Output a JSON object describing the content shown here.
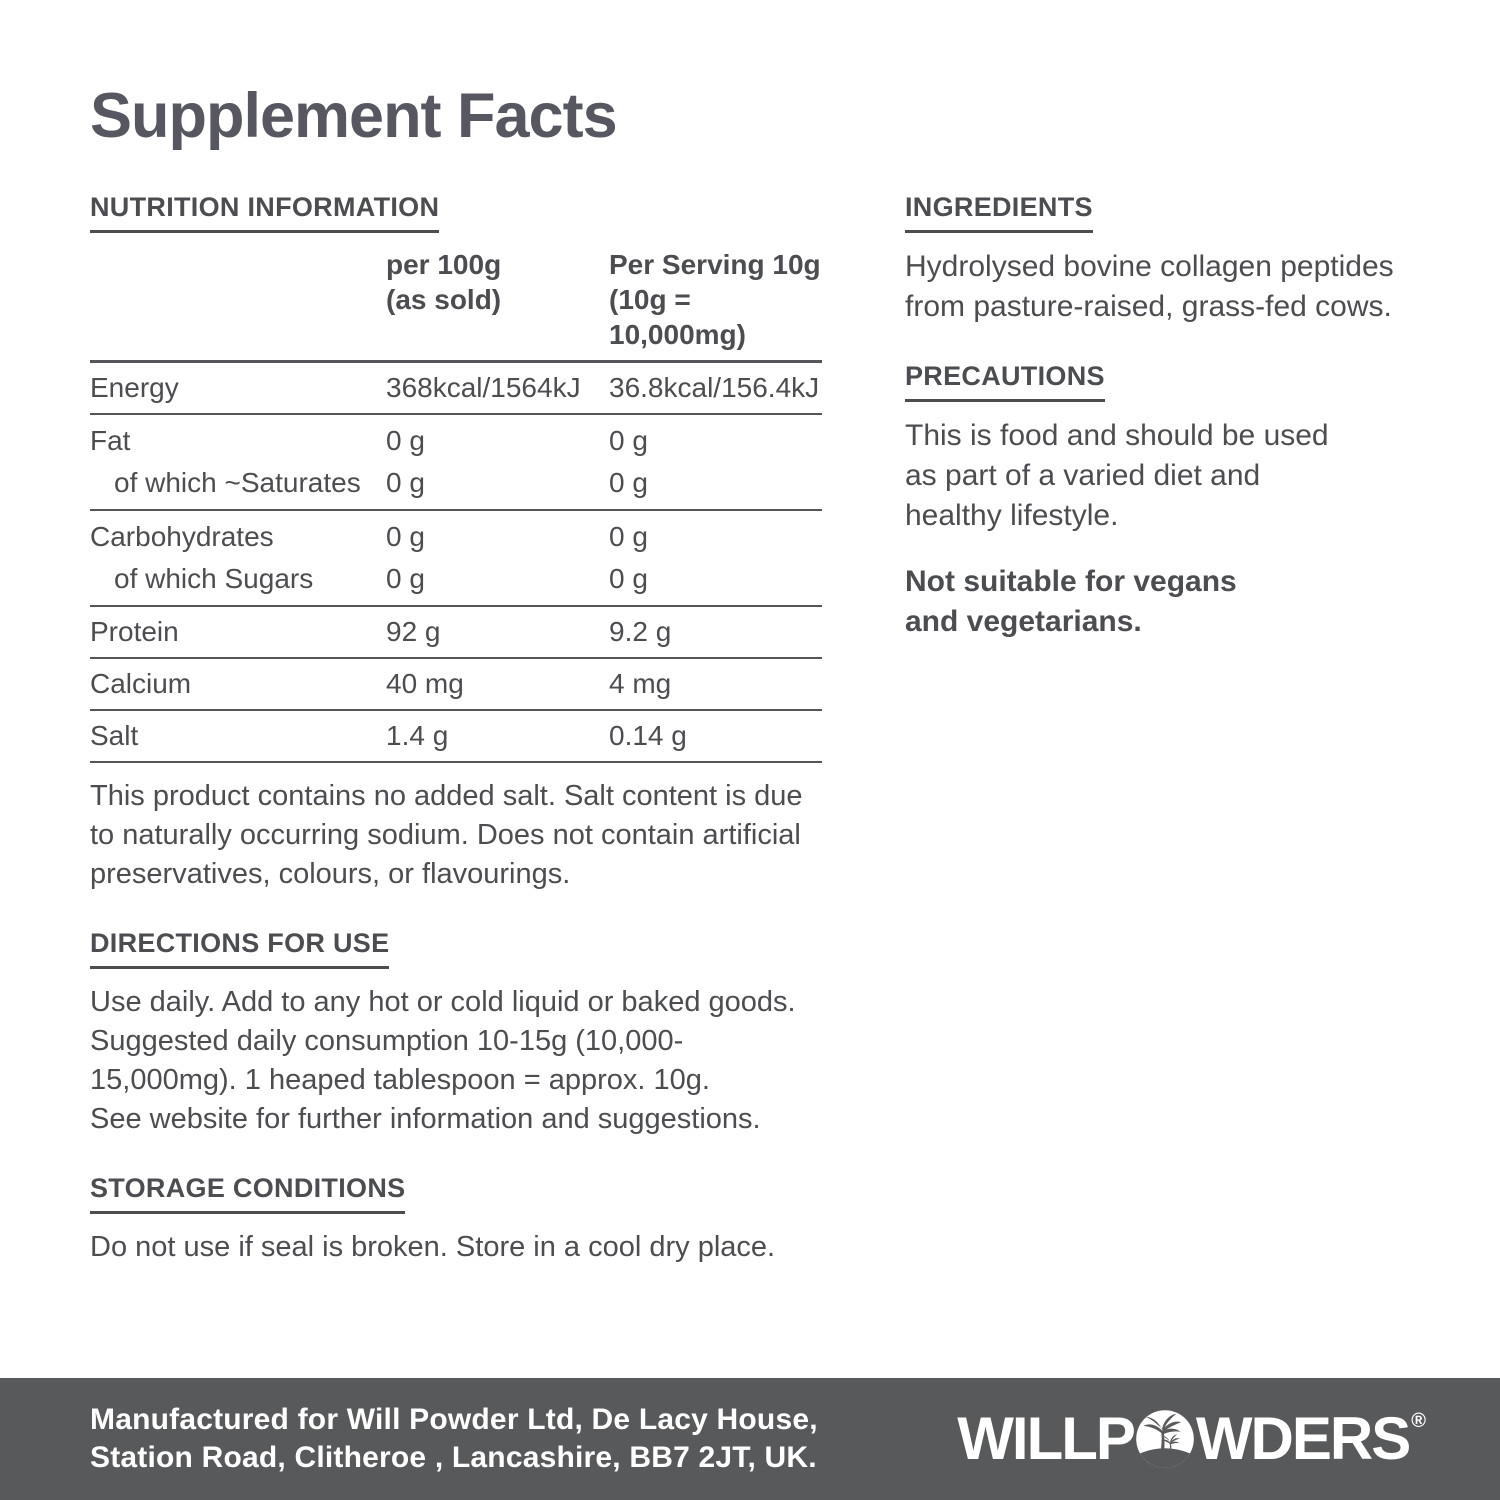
{
  "page": {
    "title": "Supplement Facts"
  },
  "nutrition": {
    "heading": "NUTRITION INFORMATION",
    "col_per100": [
      "per 100g",
      "(as sold)"
    ],
    "col_serving": [
      "Per Serving 10g",
      "(10g = 10,000mg)"
    ],
    "groups": [
      {
        "rows": [
          {
            "label": "Energy",
            "per100": "368kcal/1564kJ",
            "serving": "36.8kcal/156.4kJ"
          }
        ]
      },
      {
        "rows": [
          {
            "label": "Fat",
            "per100": "0 g",
            "serving": "0 g"
          },
          {
            "label": "of which ~Saturates",
            "per100": "0 g",
            "serving": "0 g"
          }
        ]
      },
      {
        "rows": [
          {
            "label": "Carbohydrates",
            "per100": "0 g",
            "serving": "0 g"
          },
          {
            "label": "of which Sugars",
            "per100": "0 g",
            "serving": "0 g"
          }
        ]
      },
      {
        "rows": [
          {
            "label": "Protein",
            "per100": "92 g",
            "serving": "9.2 g"
          }
        ]
      },
      {
        "rows": [
          {
            "label": "Calcium",
            "per100": "40 mg",
            "serving": "4 mg"
          }
        ]
      },
      {
        "rows": [
          {
            "label": "Salt",
            "per100": "1.4 g",
            "serving": "0.14 g"
          }
        ]
      }
    ],
    "note_lines": [
      "This product contains no added salt. Salt content is due",
      "to naturally occurring sodium. Does not contain artificial",
      "preservatives, colours, or flavourings."
    ]
  },
  "directions": {
    "heading": "DIRECTIONS FOR USE",
    "lines": [
      "Use daily. Add to any hot or cold liquid or baked goods.",
      "Suggested daily consumption 10-15g (10,000-",
      "15,000mg).  1 heaped tablespoon = approx. 10g.",
      "See website for further information and suggestions."
    ]
  },
  "storage": {
    "heading": "STORAGE CONDITIONS",
    "lines": [
      "Do not use if seal is broken. Store in a cool dry place."
    ]
  },
  "ingredients": {
    "heading": "INGREDIENTS",
    "lines": [
      "Hydrolysed bovine collagen peptides",
      "from pasture-raised, grass-fed cows."
    ]
  },
  "precautions": {
    "heading": "PRECAUTIONS",
    "lines": [
      "This is food and should be used",
      "as part of a varied diet and",
      "healthy lifestyle."
    ],
    "note_lines": [
      "Not suitable for vegans",
      "and vegetarians."
    ]
  },
  "footer": {
    "address_lines": [
      "Manufactured for Will Powder Ltd, De Lacy House,",
      "Station Road, Clitheroe , Lancashire, BB7 2JT, UK."
    ],
    "brand_pre": "WILLP",
    "brand_post": "WDERS",
    "trademark": "®"
  },
  "colors": {
    "ink": "#4c4d50",
    "footer_bg": "#58595b",
    "white": "#ffffff"
  }
}
